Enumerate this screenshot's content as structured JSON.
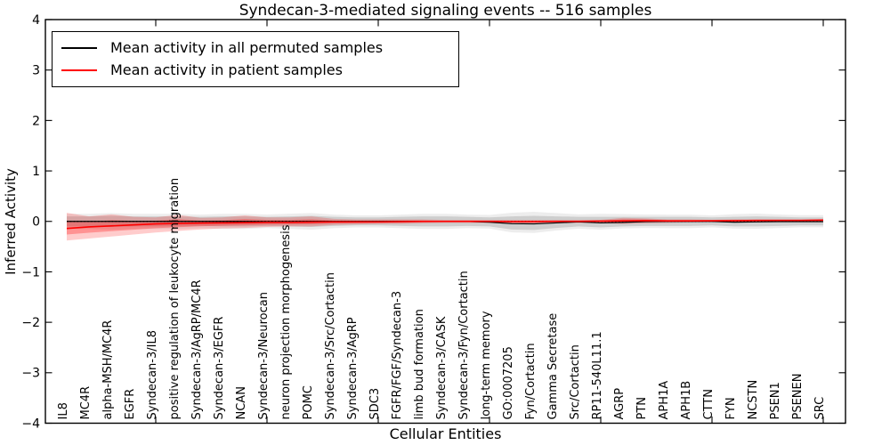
{
  "title": "Syndecan-3-mediated signaling events -- 516 samples",
  "legend": [
    {
      "label": "Mean activity in all permuted samples",
      "color": "#000000"
    },
    {
      "label": "Mean activity in patient samples",
      "color": "#ff0000"
    }
  ],
  "colors": {
    "permuted_line": "#000000",
    "patient_line": "#ff0000",
    "permuted_band": "rgba(0,0,0,0.13)",
    "permuted_band_outer": "rgba(0,0,0,0.07)",
    "patient_band": "rgba(255,0,0,0.20)",
    "patient_band_inner": "rgba(255,0,0,0.28)",
    "axis": "#000000"
  },
  "chart_data": {
    "type": "line",
    "title": "Syndecan-3-mediated signaling events -- 516 samples",
    "xlabel": "Cellular Entities",
    "ylabel": "Inferred Activity",
    "ylim": [
      -4,
      4
    ],
    "grid": false,
    "legend_position": "upper left",
    "zero_line": {
      "style": "dotted",
      "y": 0
    },
    "ytick_values": [
      4,
      3,
      2,
      1,
      0,
      -1,
      -2,
      -3,
      -4
    ],
    "ytick_labels": [
      "4",
      "3",
      "2",
      "1",
      "0",
      "−1",
      "−2",
      "−3",
      "−4"
    ],
    "xtick_major_indices": [
      4,
      9,
      14,
      19,
      24,
      29,
      34
    ],
    "categories": [
      "IL8",
      "MC4R",
      "alpha-MSH/MC4R",
      "EGFR",
      "Syndecan-3/IL8",
      "positive regulation of leukocyte migration",
      "Syndecan-3/AgRP/MC4R",
      "Syndecan-3/EGFR",
      "NCAN",
      "Syndecan-3/Neurocan",
      "neuron projection morphogenesis",
      "POMC",
      "Syndecan-3/Src/Cortactin",
      "Syndecan-3/AgRP",
      "SDC3",
      "FGFR/FGF/Syndecan-3",
      "limb bud formation",
      "Syndecan-3/CASK",
      "Syndecan-3/Fyn/Cortactin",
      "long-term memory",
      "GO:0007205",
      "Fyn/Cortactin",
      "Gamma Secretase",
      "Src/Cortactin",
      "RP11-540L11.1",
      "AGRP",
      "PTN",
      "APH1A",
      "APH1B",
      "CTTN",
      "FYN",
      "NCSTN",
      "PSEN1",
      "PSENEN",
      "SRC"
    ],
    "series": [
      {
        "name": "Mean activity in all permuted samples",
        "color": "#000000",
        "values": [
          0,
          0,
          0,
          0,
          0,
          0,
          0,
          0,
          0,
          -0.005,
          -0.005,
          0,
          0,
          0,
          0,
          0,
          0,
          0,
          0,
          -0.015,
          -0.045,
          -0.05,
          -0.03,
          -0.01,
          -0.03,
          -0.02,
          -0.005,
          0,
          0,
          0,
          -0.015,
          -0.01,
          -0.005,
          -0.005,
          -0.005
        ],
        "band_hi": [
          0.1,
          0.1,
          0.11,
          0.1,
          0.1,
          0.1,
          0.09,
          0.1,
          0.1,
          0.09,
          0.1,
          0.11,
          0.09,
          0.08,
          0.08,
          0.09,
          0.1,
          0.1,
          0.09,
          0.08,
          0.1,
          0.11,
          0.1,
          0.09,
          0.09,
          0.09,
          0.09,
          0.09,
          0.09,
          0.08,
          0.09,
          0.1,
          0.09,
          0.08,
          0.08
        ],
        "band_lo": [
          -0.1,
          -0.1,
          -0.11,
          -0.1,
          -0.1,
          -0.1,
          -0.09,
          -0.1,
          -0.1,
          -0.09,
          -0.1,
          -0.11,
          -0.09,
          -0.08,
          -0.08,
          -0.09,
          -0.1,
          -0.1,
          -0.09,
          -0.1,
          -0.16,
          -0.17,
          -0.13,
          -0.1,
          -0.12,
          -0.1,
          -0.09,
          -0.09,
          -0.09,
          -0.08,
          -0.1,
          -0.1,
          -0.09,
          -0.08,
          -0.08
        ]
      },
      {
        "name": "Mean activity in patient samples",
        "color": "#ff0000",
        "values": [
          -0.14,
          -0.11,
          -0.09,
          -0.07,
          -0.05,
          -0.04,
          -0.035,
          -0.03,
          -0.025,
          -0.02,
          -0.02,
          -0.015,
          -0.01,
          -0.01,
          -0.01,
          -0.005,
          0,
          0,
          0,
          0,
          -0.005,
          -0.005,
          0,
          0,
          0.005,
          0.01,
          0.015,
          0.01,
          0.01,
          0.012,
          0.015,
          0.018,
          0.02,
          0.02,
          0.025
        ],
        "band_hi": [
          0.17,
          0.1,
          0.14,
          0.09,
          0.08,
          0.13,
          0.07,
          0.08,
          0.12,
          0.08,
          0.08,
          0.1,
          0.05,
          0.04,
          0.04,
          0.04,
          0.04,
          0.03,
          0.03,
          0.03,
          0.03,
          0.03,
          0.03,
          0.03,
          0.03,
          0.07,
          0.06,
          0.04,
          0.04,
          0.03,
          0.04,
          0.04,
          0.04,
          0.04,
          0.045
        ],
        "band_lo": [
          -0.38,
          -0.34,
          -0.3,
          -0.26,
          -0.22,
          -0.19,
          -0.16,
          -0.14,
          -0.13,
          -0.11,
          -0.1,
          -0.1,
          -0.07,
          -0.06,
          -0.05,
          -0.05,
          -0.04,
          -0.03,
          -0.03,
          -0.03,
          -0.04,
          -0.04,
          -0.03,
          -0.03,
          -0.03,
          -0.05,
          -0.04,
          -0.03,
          -0.02,
          -0.01,
          -0.01,
          0,
          0,
          0,
          0
        ]
      }
    ]
  }
}
